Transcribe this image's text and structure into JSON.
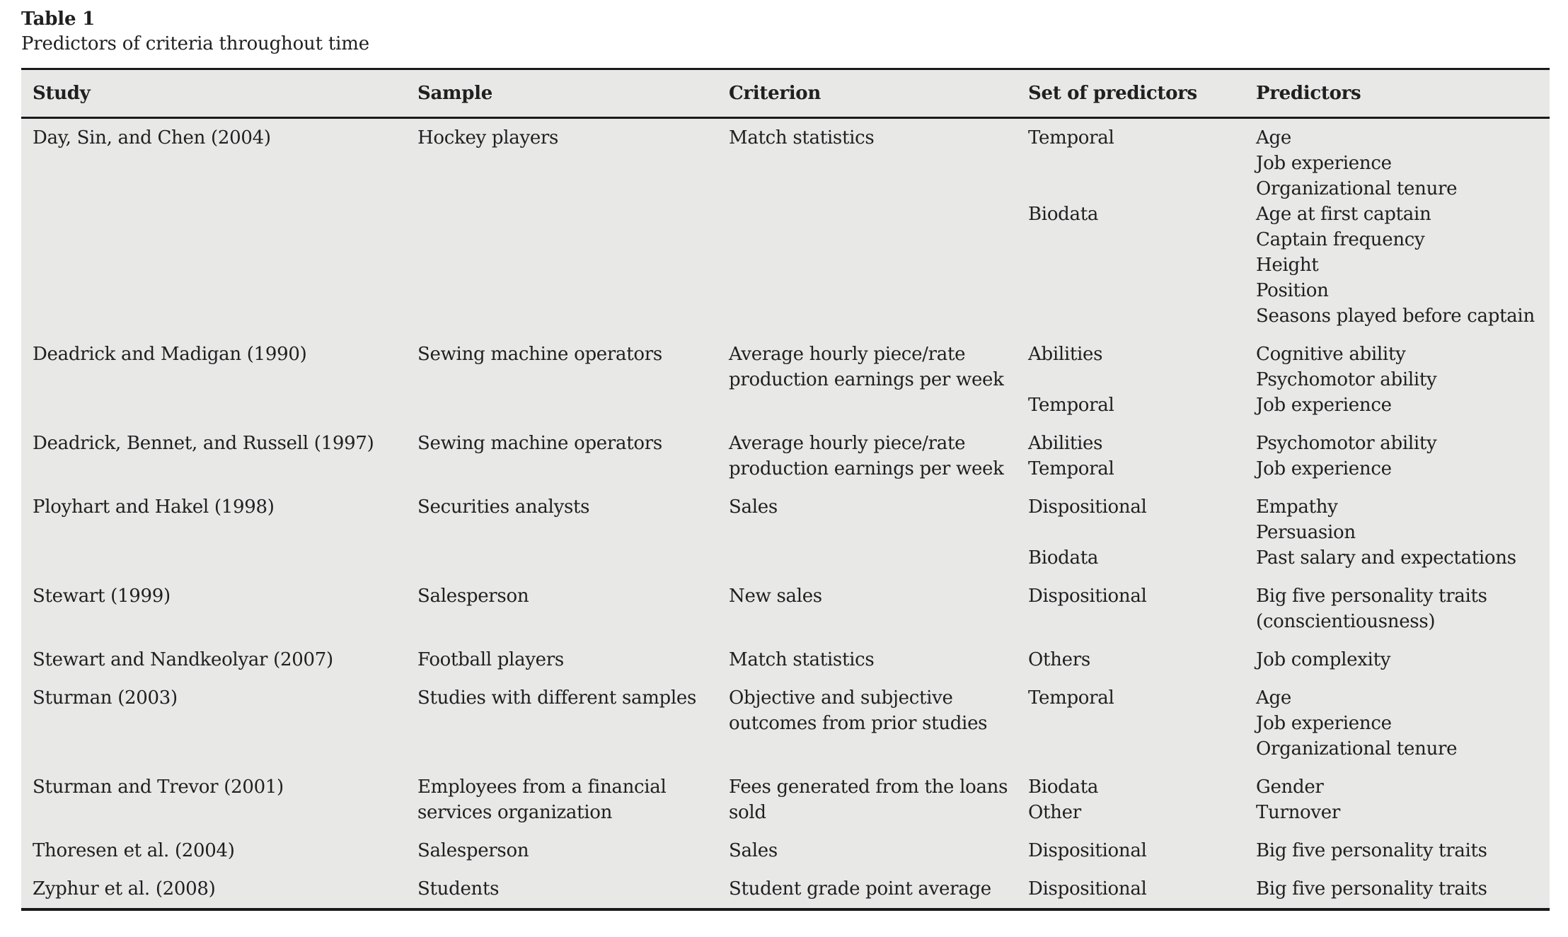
{
  "table": {
    "label": "Table 1",
    "caption": "Predictors of criteria throughout time",
    "columns": {
      "study": "Study",
      "sample": "Sample",
      "criterion": "Criterion",
      "set_of_predictors": "Set of predictors",
      "predictors": "Predictors"
    },
    "rows": [
      {
        "study": "Day, Sin, and Chen (2004)",
        "sample": "Hockey players",
        "criterion": "Match statistics",
        "lines": [
          {
            "set": "Temporal",
            "predictor": "Age"
          },
          {
            "set": "",
            "predictor": "Job experience"
          },
          {
            "set": "",
            "predictor": "Organizational tenure"
          },
          {
            "set": "Biodata",
            "predictor": "Age at first captain"
          },
          {
            "set": "",
            "predictor": "Captain frequency"
          },
          {
            "set": "",
            "predictor": "Height"
          },
          {
            "set": "",
            "predictor": "Position"
          },
          {
            "set": "",
            "predictor": "Seasons played before captain"
          }
        ]
      },
      {
        "study": "Deadrick and Madigan (1990)",
        "sample": "Sewing machine operators",
        "criterion": "Average hourly piece/rate\nproduction earnings per week",
        "lines": [
          {
            "set": "Abilities",
            "predictor": "Cognitive ability"
          },
          {
            "set": "",
            "predictor": "Psychomotor ability"
          },
          {
            "set": "Temporal",
            "predictor": "Job experience"
          }
        ]
      },
      {
        "study": "Deadrick, Bennet, and Russell (1997)",
        "sample": "Sewing machine operators",
        "criterion": "Average hourly piece/rate\nproduction earnings per week",
        "lines": [
          {
            "set": "Abilities",
            "predictor": "Psychomotor ability"
          },
          {
            "set": "Temporal",
            "predictor": "Job experience"
          }
        ]
      },
      {
        "study": "Ployhart and Hakel (1998)",
        "sample": "Securities analysts",
        "criterion": "Sales",
        "lines": [
          {
            "set": "Dispositional",
            "predictor": "Empathy"
          },
          {
            "set": "",
            "predictor": "Persuasion"
          },
          {
            "set": "Biodata",
            "predictor": "Past salary and expectations"
          }
        ]
      },
      {
        "study": "Stewart (1999)",
        "sample": "Salesperson",
        "criterion": "New sales",
        "lines": [
          {
            "set": "Dispositional",
            "predictor": "Big five personality traits"
          },
          {
            "set": "",
            "predictor": "(conscientiousness)"
          }
        ]
      },
      {
        "study": "Stewart and Nandkeolyar (2007)",
        "sample": "Football players",
        "criterion": "Match statistics",
        "lines": [
          {
            "set": "Others",
            "predictor": "Job complexity"
          }
        ]
      },
      {
        "study": "Sturman (2003)",
        "sample": "Studies with different samples",
        "criterion": "Objective and subjective\noutcomes from prior studies",
        "lines": [
          {
            "set": "Temporal",
            "predictor": "Age"
          },
          {
            "set": "",
            "predictor": "Job experience"
          },
          {
            "set": "",
            "predictor": "Organizational tenure"
          }
        ]
      },
      {
        "study": "Sturman and Trevor (2001)",
        "sample": "Employees from a financial\nservices organization",
        "criterion": "Fees generated from the loans\nsold",
        "lines": [
          {
            "set": "Biodata",
            "predictor": "Gender"
          },
          {
            "set": "Other",
            "predictor": "Turnover"
          }
        ]
      },
      {
        "study": "Thoresen et al. (2004)",
        "sample": "Salesperson",
        "criterion": "Sales",
        "lines": [
          {
            "set": "Dispositional",
            "predictor": "Big five personality traits"
          }
        ]
      },
      {
        "study": "Zyphur et al. (2008)",
        "sample": "Students",
        "criterion": "Student grade point average",
        "lines": [
          {
            "set": "Dispositional",
            "predictor": "Big five personality traits"
          }
        ]
      }
    ]
  },
  "colors": {
    "table_background": "#e8e8e7",
    "rule": "#1a1a1a",
    "text": "#202020",
    "page_background": "#ffffff"
  }
}
